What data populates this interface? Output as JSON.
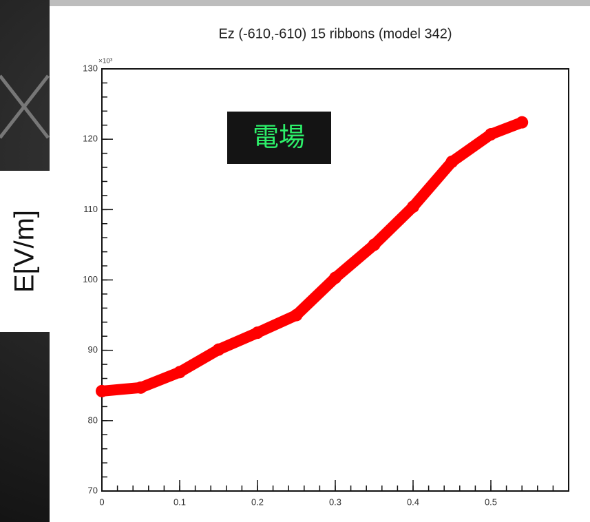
{
  "chart_data": {
    "type": "line",
    "title": "Ez (-610,-610) 15 ribbons (model 342)",
    "y_label": "E[V/m]",
    "y_multiplier": "×10³",
    "annotation": "電場",
    "x": [
      0,
      0.05,
      0.1,
      0.15,
      0.2,
      0.25,
      0.3,
      0.35,
      0.4,
      0.45,
      0.5,
      0.54
    ],
    "values": [
      84.2,
      84.7,
      86.9,
      90.1,
      92.5,
      95.0,
      100.3,
      105.0,
      110.4,
      116.8,
      120.7,
      122.4
    ],
    "color": "#ff0000",
    "xlim": [
      0,
      0.6
    ],
    "xticks": [
      0,
      0.1,
      0.2,
      0.3,
      0.4,
      0.5
    ],
    "ylim": [
      70,
      130
    ],
    "yticks": [
      70,
      80,
      90,
      100,
      110,
      120,
      130
    ]
  }
}
